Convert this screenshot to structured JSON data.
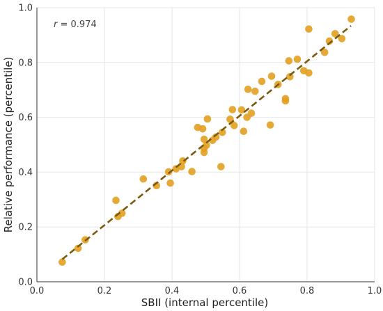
{
  "chart_data": {
    "type": "scatter",
    "xlabel": "SBII (internal percentile)",
    "ylabel": "Relative performance (percentile)",
    "xlim": [
      0,
      1
    ],
    "ylim": [
      0,
      1
    ],
    "x_ticks": [
      "0.0",
      "0.2",
      "0.4",
      "0.6",
      "0.8",
      "1.0"
    ],
    "y_ticks": [
      "0.0",
      "0.2",
      "0.4",
      "0.6",
      "0.8",
      "1.0"
    ],
    "grid": true,
    "annotation": {
      "var": "r",
      "text": " = 0.974"
    },
    "points": [
      [
        0.075,
        0.072
      ],
      [
        0.122,
        0.122
      ],
      [
        0.143,
        0.153
      ],
      [
        0.234,
        0.297
      ],
      [
        0.24,
        0.238
      ],
      [
        0.252,
        0.25
      ],
      [
        0.315,
        0.375
      ],
      [
        0.354,
        0.351
      ],
      [
        0.39,
        0.401
      ],
      [
        0.395,
        0.36
      ],
      [
        0.412,
        0.412
      ],
      [
        0.428,
        0.42
      ],
      [
        0.432,
        0.441
      ],
      [
        0.459,
        0.402
      ],
      [
        0.476,
        0.563
      ],
      [
        0.491,
        0.558
      ],
      [
        0.495,
        0.52
      ],
      [
        0.495,
        0.487
      ],
      [
        0.495,
        0.472
      ],
      [
        0.502,
        0.498
      ],
      [
        0.505,
        0.594
      ],
      [
        0.52,
        0.516
      ],
      [
        0.53,
        0.528
      ],
      [
        0.545,
        0.42
      ],
      [
        0.549,
        0.545
      ],
      [
        0.572,
        0.593
      ],
      [
        0.579,
        0.628
      ],
      [
        0.584,
        0.57
      ],
      [
        0.606,
        0.627
      ],
      [
        0.612,
        0.549
      ],
      [
        0.622,
        0.6
      ],
      [
        0.625,
        0.702
      ],
      [
        0.635,
        0.615
      ],
      [
        0.646,
        0.695
      ],
      [
        0.666,
        0.731
      ],
      [
        0.691,
        0.572
      ],
      [
        0.695,
        0.75
      ],
      [
        0.714,
        0.72
      ],
      [
        0.736,
        0.66
      ],
      [
        0.736,
        0.668
      ],
      [
        0.746,
        0.806
      ],
      [
        0.749,
        0.748
      ],
      [
        0.771,
        0.812
      ],
      [
        0.79,
        0.77
      ],
      [
        0.805,
        0.762
      ],
      [
        0.805,
        0.922
      ],
      [
        0.852,
        0.837
      ],
      [
        0.866,
        0.878
      ],
      [
        0.883,
        0.905
      ],
      [
        0.903,
        0.887
      ],
      [
        0.931,
        0.958
      ]
    ],
    "trendline": {
      "from": [
        0.075,
        0.082
      ],
      "to": [
        0.93,
        0.934
      ],
      "style": "dashed"
    },
    "point_color": "#E2A021",
    "line_color": "#7A5A0F"
  }
}
